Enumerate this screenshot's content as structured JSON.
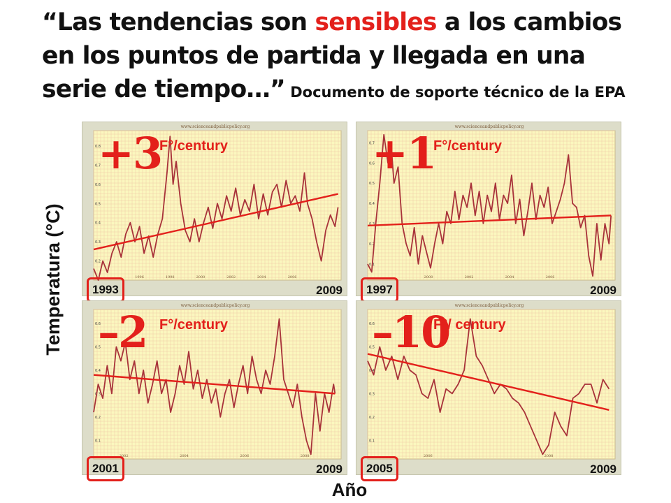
{
  "headline": {
    "part1": "“Las tendencias son ",
    "highlight": "sensibles",
    "part2": " a los cambios en los puntos de partida y llegada en una serie de tiempo…”",
    "source": " Documento de soporte técnico de la EPA"
  },
  "colors": {
    "highlight": "#e3201b",
    "series": "#a8323a",
    "trend": "#e3201b",
    "plot_background": "#fbf7bf",
    "grid": "#efc9a6",
    "panel_frame": "#ddddc9"
  },
  "axis_titles": {
    "y": "Temperatura (°C)",
    "x": "Año"
  },
  "chart_data": [
    {
      "type": "line",
      "site": "www.scienceandpublicpolicy.org",
      "trend_label": "+3",
      "trend_unit": "F°/century",
      "start_year": "1993",
      "end_year": "2009",
      "xlim": [
        1993,
        2009.2
      ],
      "ylim": [
        0.1,
        0.88
      ],
      "yticks": [
        "0.2",
        "0.3",
        "0.4",
        "0.5",
        "0.6",
        "0.7",
        "0.8"
      ],
      "xticks": [
        "1996",
        "1998",
        "2000",
        "2002",
        "2004",
        "2006"
      ],
      "grid": true,
      "trend_line": {
        "from": [
          1993,
          0.26
        ],
        "to": [
          2009,
          0.55
        ]
      },
      "series": [
        {
          "x": [
            1993,
            1993.3,
            1993.6,
            1993.9,
            1994.2,
            1994.5,
            1994.8,
            1995.1,
            1995.4,
            1995.7,
            1996,
            1996.3,
            1996.6,
            1996.9,
            1997.2,
            1997.5,
            1997.8,
            1998,
            1998.2,
            1998.4,
            1998.7,
            1999,
            1999.3,
            1999.6,
            1999.9,
            2000.2,
            2000.5,
            2000.8,
            2001.1,
            2001.4,
            2001.7,
            2002,
            2002.3,
            2002.6,
            2002.9,
            2003.2,
            2003.5,
            2003.8,
            2004.1,
            2004.4,
            2004.7,
            2005,
            2005.3,
            2005.6,
            2005.9,
            2006.2,
            2006.5,
            2006.8,
            2007,
            2007.3,
            2007.6,
            2007.9,
            2008.2,
            2008.5,
            2008.8,
            2009
          ],
          "y": [
            0.16,
            0.1,
            0.2,
            0.14,
            0.24,
            0.3,
            0.22,
            0.34,
            0.4,
            0.3,
            0.38,
            0.24,
            0.33,
            0.22,
            0.34,
            0.42,
            0.66,
            0.85,
            0.6,
            0.72,
            0.5,
            0.36,
            0.3,
            0.42,
            0.3,
            0.4,
            0.48,
            0.37,
            0.5,
            0.42,
            0.54,
            0.46,
            0.58,
            0.44,
            0.52,
            0.46,
            0.6,
            0.42,
            0.55,
            0.44,
            0.56,
            0.6,
            0.48,
            0.62,
            0.5,
            0.54,
            0.46,
            0.66,
            0.5,
            0.42,
            0.3,
            0.2,
            0.36,
            0.44,
            0.38,
            0.48
          ]
        }
      ]
    },
    {
      "type": "line",
      "site": "www.scienceandpublicpolicy.org",
      "trend_label": "+1",
      "trend_unit": "F°/century",
      "start_year": "1997",
      "end_year": "2009",
      "xlim": [
        1997,
        2009.2
      ],
      "ylim": [
        0.02,
        0.76
      ],
      "yticks": [
        "0.1",
        "0.2",
        "0.3",
        "0.4",
        "0.5",
        "0.6",
        "0.7"
      ],
      "xticks": [
        "2000",
        "2002",
        "2004",
        "2006"
      ],
      "grid": true,
      "trend_line": {
        "from": [
          1997,
          0.29
        ],
        "to": [
          2009,
          0.34
        ]
      },
      "series": [
        {
          "x": [
            1997,
            1997.2,
            1997.4,
            1997.6,
            1997.8,
            1998,
            1998.15,
            1998.3,
            1998.5,
            1998.7,
            1998.9,
            1999.1,
            1999.3,
            1999.5,
            1999.7,
            1999.9,
            2000.1,
            2000.3,
            2000.5,
            2000.7,
            2000.9,
            2001.1,
            2001.3,
            2001.5,
            2001.7,
            2001.9,
            2002.1,
            2002.3,
            2002.5,
            2002.7,
            2002.9,
            2003.1,
            2003.3,
            2003.5,
            2003.7,
            2003.9,
            2004.1,
            2004.3,
            2004.5,
            2004.7,
            2004.9,
            2005.1,
            2005.3,
            2005.5,
            2005.7,
            2005.9,
            2006.1,
            2006.3,
            2006.5,
            2006.7,
            2006.9,
            2007.1,
            2007.3,
            2007.5,
            2007.7,
            2007.9,
            2008.1,
            2008.3,
            2008.5,
            2008.7,
            2008.9,
            2009
          ],
          "y": [
            0.1,
            0.06,
            0.3,
            0.5,
            0.74,
            0.6,
            0.7,
            0.5,
            0.58,
            0.3,
            0.2,
            0.14,
            0.28,
            0.1,
            0.24,
            0.16,
            0.08,
            0.2,
            0.3,
            0.2,
            0.36,
            0.3,
            0.46,
            0.32,
            0.44,
            0.38,
            0.5,
            0.34,
            0.46,
            0.3,
            0.44,
            0.36,
            0.5,
            0.32,
            0.44,
            0.4,
            0.54,
            0.3,
            0.42,
            0.24,
            0.36,
            0.5,
            0.32,
            0.44,
            0.38,
            0.48,
            0.3,
            0.36,
            0.42,
            0.5,
            0.64,
            0.4,
            0.38,
            0.28,
            0.34,
            0.14,
            0.04,
            0.3,
            0.12,
            0.3,
            0.2,
            0.34
          ]
        }
      ]
    },
    {
      "type": "line",
      "site": "www.scienceandpublicpolicy.org",
      "trend_label": "–2",
      "trend_unit": "F°/century",
      "start_year": "2001",
      "end_year": "2009",
      "xlim": [
        2001,
        2009.2
      ],
      "ylim": [
        0.02,
        0.66
      ],
      "yticks": [
        "0.1",
        "0.2",
        "0.3",
        "0.4",
        "0.5",
        "0.6"
      ],
      "xticks": [
        "2002",
        "2004",
        "2006",
        "2008"
      ],
      "grid": true,
      "trend_line": {
        "from": [
          2001,
          0.38
        ],
        "to": [
          2009,
          0.3
        ]
      },
      "series": [
        {
          "x": [
            2001,
            2001.15,
            2001.3,
            2001.45,
            2001.6,
            2001.75,
            2001.9,
            2002.05,
            2002.2,
            2002.35,
            2002.5,
            2002.65,
            2002.8,
            2002.95,
            2003.1,
            2003.25,
            2003.4,
            2003.55,
            2003.7,
            2003.85,
            2004,
            2004.15,
            2004.3,
            2004.45,
            2004.6,
            2004.75,
            2004.9,
            2005.05,
            2005.2,
            2005.35,
            2005.5,
            2005.65,
            2005.8,
            2005.95,
            2006.1,
            2006.25,
            2006.4,
            2006.55,
            2006.7,
            2006.85,
            2007,
            2007.15,
            2007.3,
            2007.45,
            2007.6,
            2007.75,
            2007.9,
            2008.05,
            2008.2,
            2008.35,
            2008.5,
            2008.65,
            2008.8,
            2008.95,
            2009
          ],
          "y": [
            0.22,
            0.34,
            0.28,
            0.42,
            0.3,
            0.5,
            0.44,
            0.52,
            0.36,
            0.44,
            0.3,
            0.4,
            0.26,
            0.34,
            0.44,
            0.3,
            0.36,
            0.22,
            0.3,
            0.42,
            0.34,
            0.48,
            0.32,
            0.4,
            0.28,
            0.36,
            0.26,
            0.32,
            0.2,
            0.3,
            0.36,
            0.24,
            0.34,
            0.42,
            0.3,
            0.46,
            0.36,
            0.3,
            0.4,
            0.34,
            0.46,
            0.62,
            0.36,
            0.3,
            0.24,
            0.34,
            0.2,
            0.1,
            0.04,
            0.3,
            0.14,
            0.3,
            0.22,
            0.34,
            0.3
          ]
        }
      ]
    },
    {
      "type": "line",
      "site": "www.scienceandpublicpolicy.org",
      "trend_label": "–10",
      "trend_unit": "F°/ century",
      "start_year": "2005",
      "end_year": "2009",
      "xlim": [
        2005,
        2009.1
      ],
      "ylim": [
        0.02,
        0.66
      ],
      "yticks": [
        "0.1",
        "0.2",
        "0.3",
        "0.4",
        "0.5",
        "0.6"
      ],
      "xticks": [
        "2006",
        "2008"
      ],
      "grid": true,
      "trend_line": {
        "from": [
          2005,
          0.47
        ],
        "to": [
          2009,
          0.23
        ]
      },
      "series": [
        {
          "x": [
            2005,
            2005.1,
            2005.2,
            2005.3,
            2005.4,
            2005.5,
            2005.6,
            2005.7,
            2005.8,
            2005.9,
            2006,
            2006.1,
            2006.2,
            2006.3,
            2006.4,
            2006.5,
            2006.6,
            2006.7,
            2006.8,
            2006.9,
            2007,
            2007.1,
            2007.2,
            2007.3,
            2007.4,
            2007.5,
            2007.6,
            2007.7,
            2007.8,
            2007.9,
            2008,
            2008.1,
            2008.2,
            2008.3,
            2008.4,
            2008.5,
            2008.6,
            2008.7,
            2008.8,
            2008.9,
            2009
          ],
          "y": [
            0.44,
            0.38,
            0.5,
            0.4,
            0.46,
            0.36,
            0.46,
            0.4,
            0.38,
            0.3,
            0.28,
            0.36,
            0.22,
            0.32,
            0.3,
            0.34,
            0.4,
            0.62,
            0.46,
            0.42,
            0.36,
            0.3,
            0.34,
            0.32,
            0.28,
            0.26,
            0.22,
            0.16,
            0.1,
            0.04,
            0.08,
            0.22,
            0.16,
            0.12,
            0.28,
            0.3,
            0.34,
            0.34,
            0.26,
            0.36,
            0.32
          ]
        }
      ]
    }
  ]
}
